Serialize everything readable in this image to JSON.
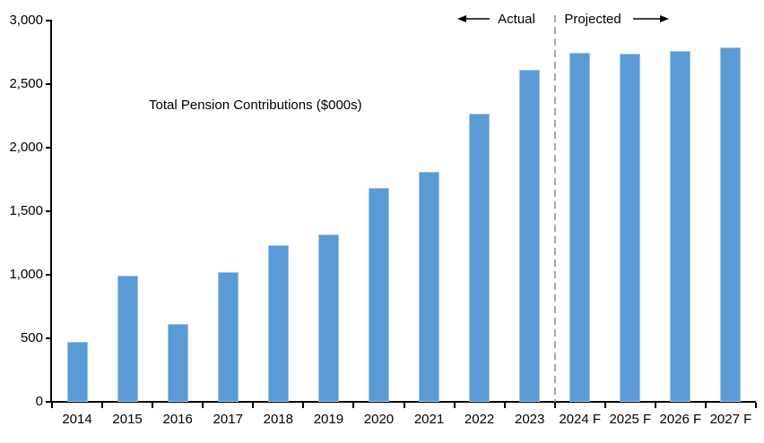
{
  "chart_data": {
    "type": "bar",
    "title": "",
    "legend": [
      "Total Pension Contributions ($000s)"
    ],
    "legend_position": "inside-upper-left",
    "categories": [
      "2014",
      "2015",
      "2016",
      "2017",
      "2018",
      "2019",
      "2020",
      "2021",
      "2022",
      "2023",
      "2024 F",
      "2025 F",
      "2026 F",
      "2027 F"
    ],
    "values": [
      470,
      990,
      610,
      1020,
      1235,
      1320,
      1685,
      1810,
      2270,
      2610,
      2750,
      2740,
      2760,
      2790
    ],
    "xlabel": "",
    "ylabel": "",
    "ylim": [
      0,
      3000
    ],
    "ytick_interval": 500,
    "ytick_labels": [
      "0",
      "500",
      "1,000",
      "1,500",
      "2,000",
      "2,500",
      "3,000"
    ],
    "grid": false,
    "annotations": {
      "actual_label": "Actual",
      "projected_label": "Projected",
      "divider_after_category": "2023"
    },
    "colors": {
      "bar_fill": "#5B9BD5",
      "bar_border": "#9DC3E6",
      "axis": "#000000",
      "divider": "#A6A6A6",
      "text": "#000000",
      "background": "#FFFFFF"
    }
  }
}
